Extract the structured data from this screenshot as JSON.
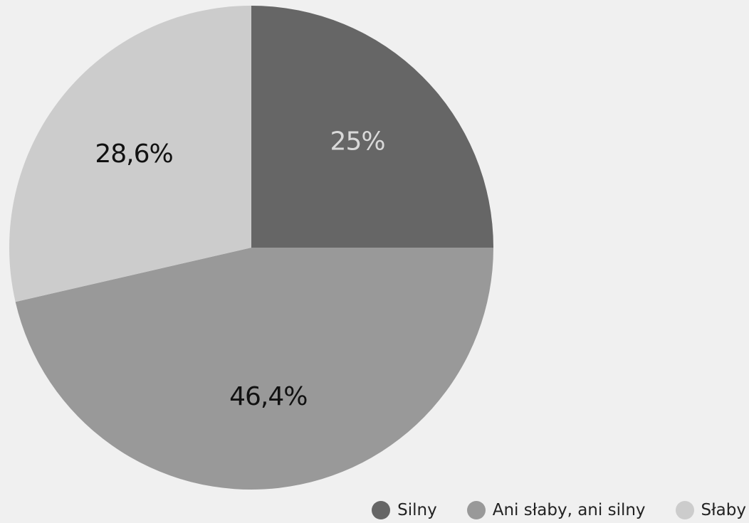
{
  "chart_data": {
    "type": "pie",
    "start_angle_deg": 0,
    "direction": "clockwise",
    "slices": [
      {
        "name": "Silny",
        "value": 25,
        "label": "25%",
        "color": "#666666",
        "label_color": "#d9d9d9"
      },
      {
        "name": "Ani słaby, ani silny",
        "value": 46.4,
        "label": "46,4%",
        "color": "#999999",
        "label_color": "#111111"
      },
      {
        "name": "Słaby",
        "value": 28.6,
        "label": "28,6%",
        "color": "#cccccc",
        "label_color": "#111111"
      }
    ],
    "legend_position": "bottom-right"
  },
  "colors": {
    "background": "#f0f0f0"
  }
}
